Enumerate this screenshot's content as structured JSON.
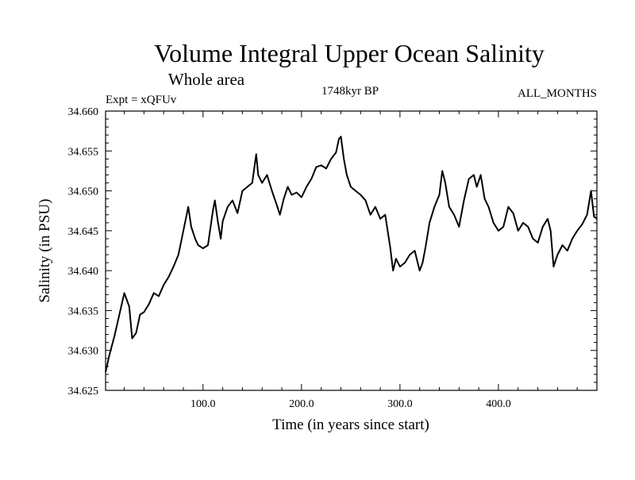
{
  "chart_data": {
    "type": "line",
    "title": "Volume Integral Upper Ocean Salinity",
    "subtitle": "Whole area",
    "header_left": "Expt = xQFUv",
    "header_center": "1748kyr BP",
    "header_right": "ALL_MONTHS",
    "xlabel": "Time (in years since start)",
    "ylabel": "Salinity (in PSU)",
    "xlim": [
      1,
      500
    ],
    "ylim": [
      34.625,
      34.66
    ],
    "x_ticks": [
      100,
      200,
      300,
      400
    ],
    "x_tick_labels": [
      "100.0",
      "200.0",
      "300.0",
      "400.0"
    ],
    "y_ticks": [
      34.625,
      34.63,
      34.635,
      34.64,
      34.645,
      34.65,
      34.655,
      34.66
    ],
    "y_tick_labels": [
      "34.625",
      "34.630",
      "34.635",
      "34.640",
      "34.645",
      "34.650",
      "34.655",
      "34.660"
    ],
    "series": [
      {
        "name": "salinity",
        "color": "#000000",
        "x": [
          1,
          5,
          10,
          15,
          20,
          25,
          28,
          32,
          36,
          40,
          45,
          50,
          55,
          60,
          65,
          70,
          75,
          80,
          85,
          88,
          92,
          95,
          100,
          105,
          110,
          112,
          115,
          118,
          120,
          125,
          130,
          135,
          140,
          145,
          150,
          154,
          156,
          160,
          165,
          170,
          175,
          178,
          182,
          186,
          190,
          195,
          200,
          205,
          210,
          215,
          220,
          225,
          230,
          235,
          238,
          240,
          243,
          246,
          250,
          255,
          260,
          265,
          270,
          275,
          280,
          285,
          290,
          293,
          296,
          300,
          305,
          310,
          315,
          320,
          323,
          326,
          330,
          335,
          340,
          343,
          346,
          350,
          355,
          360,
          365,
          370,
          375,
          378,
          382,
          386,
          390,
          395,
          400,
          405,
          410,
          415,
          420,
          425,
          430,
          435,
          440,
          445,
          450,
          453,
          456,
          460,
          465,
          470,
          475,
          480,
          485,
          490,
          494,
          497,
          500
        ],
        "y": [
          34.6273,
          34.6295,
          34.6318,
          34.6345,
          34.6372,
          34.6355,
          34.6315,
          34.6322,
          34.6345,
          34.6348,
          34.6358,
          34.6372,
          34.6368,
          34.6382,
          34.6392,
          34.6405,
          34.642,
          34.645,
          34.648,
          34.6455,
          34.644,
          34.6432,
          34.6428,
          34.6432,
          34.6475,
          34.6488,
          34.6462,
          34.644,
          34.6462,
          34.648,
          34.6488,
          34.6472,
          34.65,
          34.6505,
          34.651,
          34.6546,
          34.652,
          34.651,
          34.652,
          34.65,
          34.6482,
          34.647,
          34.649,
          34.6505,
          34.6495,
          34.6498,
          34.6492,
          34.6505,
          34.6515,
          34.653,
          34.6532,
          34.6528,
          34.654,
          34.6548,
          34.6565,
          34.6568,
          34.654,
          34.652,
          34.6505,
          34.65,
          34.6495,
          34.6488,
          34.647,
          34.648,
          34.6465,
          34.647,
          34.643,
          34.64,
          34.6415,
          34.6405,
          34.641,
          34.642,
          34.6425,
          34.64,
          34.641,
          34.643,
          34.646,
          34.648,
          34.6495,
          34.6525,
          34.651,
          34.648,
          34.647,
          34.6455,
          34.6488,
          34.6515,
          34.652,
          34.6505,
          34.652,
          34.649,
          34.648,
          34.646,
          34.645,
          34.6455,
          34.648,
          34.6472,
          34.645,
          34.646,
          34.6455,
          34.644,
          34.6435,
          34.6455,
          34.6465,
          34.645,
          34.6405,
          34.642,
          34.6432,
          34.6425,
          34.644,
          34.645,
          34.6458,
          34.647,
          34.65,
          34.6468,
          34.6465
        ]
      }
    ]
  }
}
